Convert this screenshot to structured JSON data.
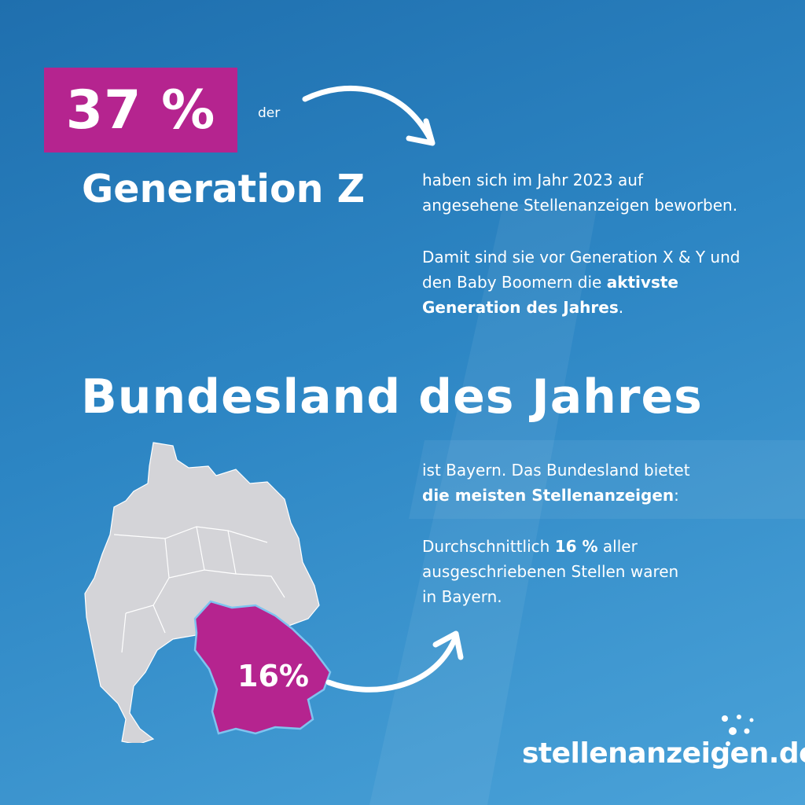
{
  "colors": {
    "accent": "#b5248f",
    "background": "#2d86c4",
    "map_gray": "#d4d4d8"
  },
  "top": {
    "percent": "37 %",
    "der": "der",
    "generation": "Generation Z",
    "p1_line1": "haben sich im Jahr 2023 auf",
    "p1_line2": "angesehene Stellenanzeigen beworben.",
    "p2_line1": "Damit sind sie vor Generation X & Y und",
    "p2_line2_a": "den Baby Boomern die ",
    "p2_line2_b": "aktivste",
    "p2_line3_b": "Generation des Jahres",
    "p2_line3_c": "."
  },
  "bottom": {
    "title": "Bundesland des Jahres",
    "map_percent": "16%",
    "p3_line1": "ist Bayern. Das Bundesland bietet",
    "p3_line2_b": "die meisten Stellenanzeigen",
    "p3_line2_c": ":",
    "p4_line1_a": "Durchschnittlich ",
    "p4_line1_b": "16 %",
    "p4_line1_c": " aller",
    "p4_line2": "ausgeschriebenen Stellen waren",
    "p4_line3": "in Bayern."
  },
  "logo": {
    "text": "stellenanzeigen.de"
  },
  "icons": [
    "curved-arrow-icon",
    "germany-map",
    "logo-dots-icon"
  ]
}
